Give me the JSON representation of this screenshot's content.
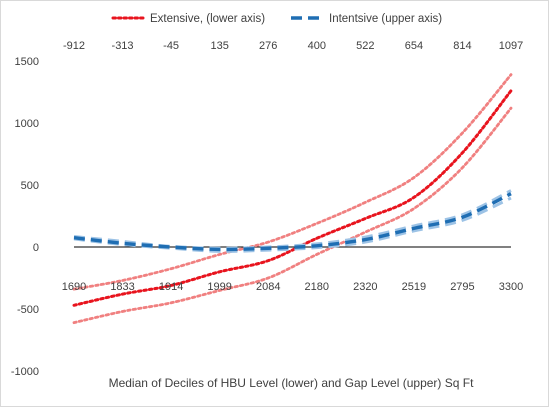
{
  "chart_data": {
    "type": "line",
    "title": "",
    "xlabel": "Median of Deciles of HBU Level (lower) and Gap Level (upper) Sq Ft",
    "ylabel": "",
    "ylim": [
      -1000,
      1500
    ],
    "yticks": [
      -1000,
      -500,
      0,
      500,
      1000,
      1500
    ],
    "ytick_labels": [
      "-1000",
      "-500",
      "0",
      "500",
      "1000",
      "1500"
    ],
    "lower_axis_labels": [
      "1690",
      "1833",
      "1914",
      "1999",
      "2084",
      "2180",
      "2320",
      "2519",
      "2795",
      "3300"
    ],
    "upper_axis_labels": [
      "-912",
      "-313",
      "-45",
      "135",
      "276",
      "400",
      "522",
      "654",
      "814",
      "1097"
    ],
    "grid": false,
    "legend_position": "top",
    "series": [
      {
        "name": "Extensive, (lower axis)",
        "axis": "lower",
        "values": [
          -470,
          -380,
          -310,
          -200,
          -110,
          70,
          230,
          400,
          760,
          1260
        ],
        "lower_band": [
          -610,
          -520,
          -450,
          -350,
          -250,
          -60,
          120,
          310,
          640,
          1120
        ],
        "upper_band": [
          -340,
          -270,
          -175,
          -60,
          40,
          190,
          360,
          560,
          920,
          1390
        ],
        "color": "#e8141e",
        "band_color": "#f08080"
      },
      {
        "name": "Intentsive (upper axis)",
        "axis": "upper",
        "values": [
          75,
          30,
          0,
          -20,
          -10,
          10,
          60,
          150,
          240,
          430
        ],
        "lower_band": [
          65,
          20,
          -10,
          -35,
          -25,
          -5,
          40,
          130,
          215,
          395
        ],
        "upper_band": [
          85,
          45,
          5,
          -10,
          0,
          25,
          80,
          170,
          260,
          455
        ],
        "color": "#1f6eb3",
        "band_color": "#9dc3e6"
      }
    ]
  }
}
